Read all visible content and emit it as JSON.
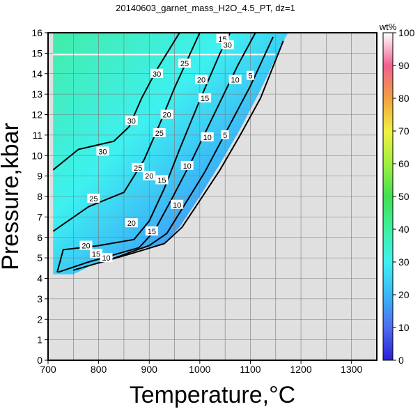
{
  "chart_data": {
    "type": "heatmap",
    "title": "20140603_garnet_mass_H2O_4.5_PT, dz=1",
    "xlabel": "Temperature,°C",
    "ylabel": "Pressure,kbar",
    "xlim": [
      700,
      1350
    ],
    "ylim": [
      0,
      16
    ],
    "xticks": [
      700,
      800,
      900,
      1000,
      1100,
      1200,
      1300
    ],
    "yticks": [
      0,
      1,
      2,
      3,
      4,
      5,
      6,
      7,
      8,
      9,
      10,
      11,
      12,
      13,
      14,
      15,
      16
    ],
    "grid": true,
    "colorbar": {
      "title": "wt%",
      "range": [
        0,
        100
      ],
      "ticks": [
        0,
        10,
        20,
        30,
        40,
        50,
        60,
        70,
        80,
        90,
        100
      ],
      "colors": [
        "#2a1fd6",
        "#4e6cf0",
        "#38b8f8",
        "#3ff0f0",
        "#3ef0a0",
        "#40e050",
        "#a0f040",
        "#f0f040",
        "#f0a040",
        "#f06090",
        "#ffffff"
      ]
    },
    "no_data_color": "#e0e0e0",
    "field_boundary": [
      [
        710,
        4.2
      ],
      [
        750,
        4.2
      ],
      [
        800,
        4.8
      ],
      [
        860,
        5.3
      ],
      [
        930,
        5.7
      ],
      [
        960,
        6.5
      ],
      [
        1000,
        8.0
      ],
      [
        1040,
        9.6
      ],
      [
        1080,
        11.3
      ],
      [
        1120,
        13.2
      ],
      [
        1170,
        15.8
      ],
      [
        1175,
        16.0
      ],
      [
        710,
        16.0
      ]
    ],
    "contours": [
      {
        "level": 5,
        "points": [
          [
            800,
            4.75
          ],
          [
            870,
            5.25
          ],
          [
            930,
            5.7
          ],
          [
            965,
            6.5
          ],
          [
            1000,
            7.8
          ],
          [
            1040,
            9.3
          ],
          [
            1080,
            11.0
          ],
          [
            1120,
            12.8
          ],
          [
            1165,
            15.6
          ]
        ]
      },
      {
        "level": 10,
        "points": [
          [
            750,
            4.4
          ],
          [
            820,
            4.9
          ],
          [
            900,
            5.6
          ],
          [
            935,
            6.2
          ],
          [
            970,
            7.6
          ],
          [
            1010,
            9.2
          ],
          [
            1055,
            11.3
          ],
          [
            1100,
            13.4
          ],
          [
            1145,
            15.8
          ]
        ]
      },
      {
        "level": 15,
        "points": [
          [
            720,
            4.3
          ],
          [
            780,
            4.8
          ],
          [
            880,
            5.5
          ],
          [
            910,
            6.3
          ],
          [
            945,
            7.9
          ],
          [
            985,
            9.8
          ],
          [
            1030,
            12.1
          ],
          [
            1075,
            14.4
          ],
          [
            1110,
            16.0
          ]
        ]
      },
      {
        "level": 20,
        "points": [
          [
            718,
            4.3
          ],
          [
            730,
            5.4
          ],
          [
            800,
            5.6
          ],
          [
            870,
            5.9
          ],
          [
            900,
            6.8
          ],
          [
            930,
            8.4
          ],
          [
            960,
            10.3
          ],
          [
            1000,
            12.7
          ],
          [
            1040,
            15.0
          ],
          [
            1060,
            16.0
          ]
        ]
      },
      {
        "level": 25,
        "points": [
          [
            710,
            6.3
          ],
          [
            780,
            7.5
          ],
          [
            850,
            8.2
          ],
          [
            890,
            9.8
          ],
          [
            920,
            11.5
          ],
          [
            950,
            13.3
          ],
          [
            985,
            15.2
          ],
          [
            1000,
            16.0
          ]
        ]
      },
      {
        "level": 30,
        "points": [
          [
            710,
            9.3
          ],
          [
            760,
            10.3
          ],
          [
            830,
            10.7
          ],
          [
            860,
            11.4
          ],
          [
            885,
            12.8
          ],
          [
            915,
            14.2
          ],
          [
            950,
            15.6
          ],
          [
            960,
            16.0
          ]
        ]
      }
    ],
    "contour_labels": [
      {
        "level": 5,
        "at": [
          [
            1050,
            11.0
          ],
          [
            1100,
            13.9
          ]
        ]
      },
      {
        "level": 10,
        "at": [
          [
            815,
            5.0
          ],
          [
            955,
            7.6
          ],
          [
            975,
            9.5
          ],
          [
            1015,
            10.9
          ],
          [
            1070,
            13.7
          ]
        ]
      },
      {
        "level": 15,
        "at": [
          [
            795,
            5.2
          ],
          [
            905,
            6.3
          ],
          [
            925,
            8.8
          ],
          [
            1010,
            12.8
          ],
          [
            1045,
            15.7
          ]
        ]
      },
      {
        "level": 20,
        "at": [
          [
            775,
            5.6
          ],
          [
            865,
            6.7
          ],
          [
            900,
            9.0
          ],
          [
            935,
            12.0
          ],
          [
            1003,
            13.7
          ]
        ]
      },
      {
        "level": 25,
        "at": [
          [
            790,
            7.9
          ],
          [
            878,
            9.4
          ],
          [
            920,
            11.1
          ],
          [
            970,
            14.5
          ]
        ]
      },
      {
        "level": 30,
        "at": [
          [
            808,
            10.2
          ],
          [
            865,
            11.7
          ],
          [
            915,
            14.0
          ],
          [
            1055,
            15.4
          ]
        ]
      }
    ]
  }
}
